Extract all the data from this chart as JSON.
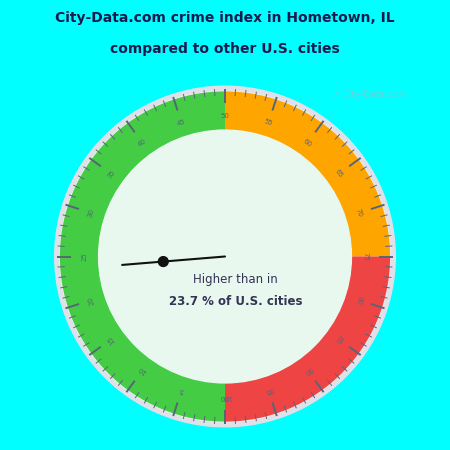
{
  "title_line1": "City-Data.com crime index in Hometown, IL",
  "title_line2": "compared to other U.S. cities",
  "title_bg_color": "#00FFFF",
  "title_color": "#1a1a4e",
  "chart_bg_color": "#C8F0DC",
  "inner_circle_color": "#E8F8EE",
  "watermark": "↗ City-Data.com",
  "needle_value": 23.7,
  "center_text_line1": "Higher than in",
  "center_text_line2": "23.7 % of U.S. cities",
  "green_color": "#44CC44",
  "orange_color": "#FFA500",
  "red_color": "#EE4444",
  "outer_ring_color": "#D0D0D8",
  "tick_color": "#556677",
  "label_color": "#556677",
  "needle_color": "#111111"
}
